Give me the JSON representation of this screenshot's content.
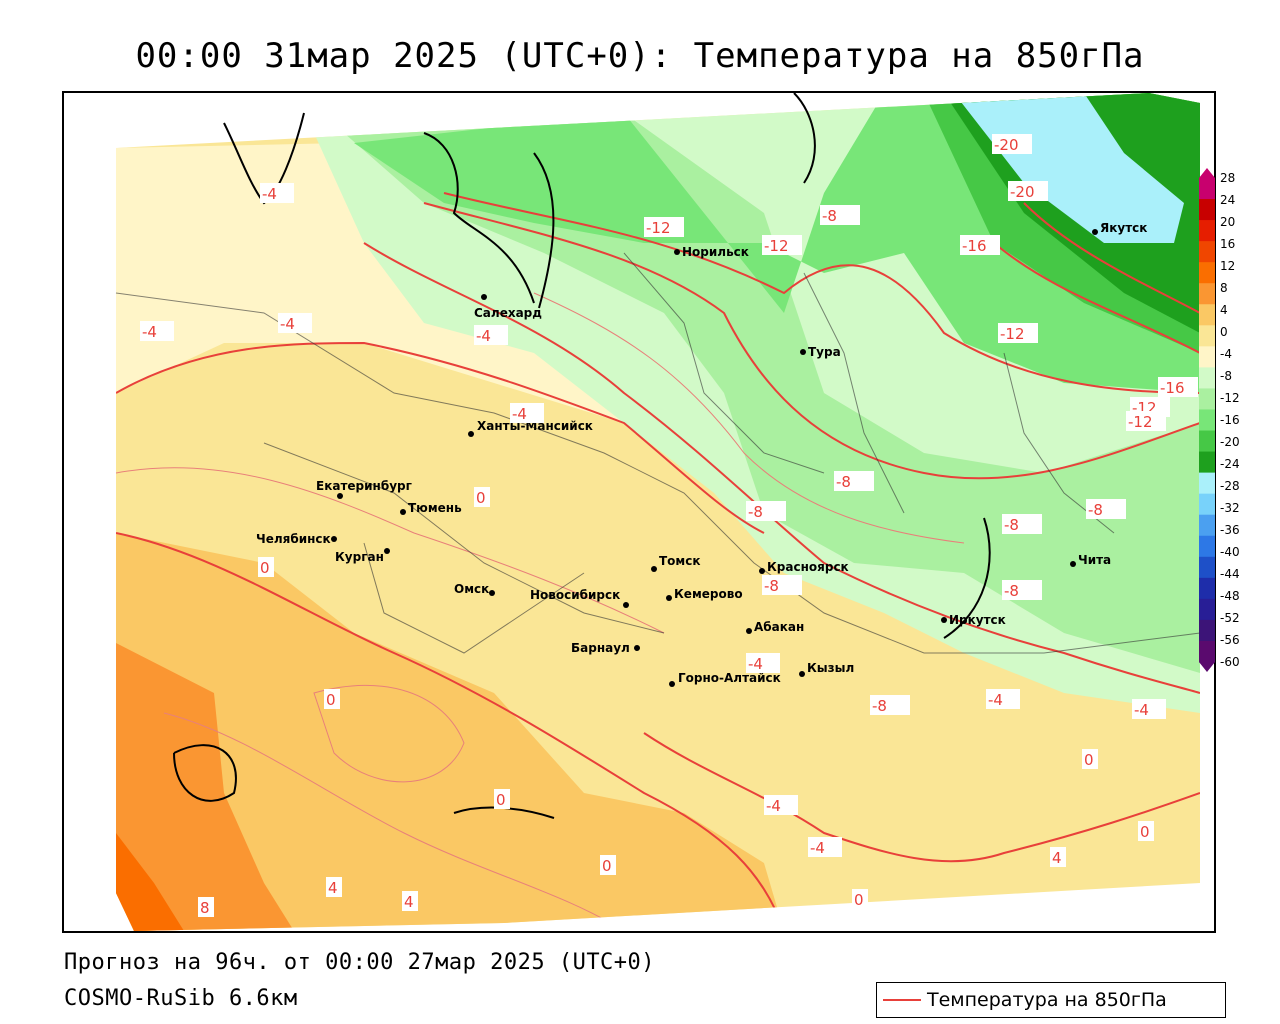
{
  "title": "00:00 31мар 2025 (UTC+0): Температура на 850гПа",
  "footer": {
    "forecast": "Прогноз на 96ч. от 00:00 27мар 2025 (UTC+0)",
    "model": "COSMO-RuSib 6.6км"
  },
  "legend": {
    "label": "Температура на 850гПа",
    "line_color": "#e8403a"
  },
  "colorbar": {
    "labels": [
      "28",
      "24",
      "20",
      "16",
      "12",
      "8",
      "4",
      "0",
      "-4",
      "-8",
      "-12",
      "-16",
      "-20",
      "-24",
      "-28",
      "-32",
      "-36",
      "-40",
      "-44",
      "-48",
      "-52",
      "-56",
      "-60"
    ],
    "colors": [
      "#c8006e",
      "#c80000",
      "#e61e00",
      "#f04600",
      "#fa6e00",
      "#fa9632",
      "#fac864",
      "#fae696",
      "#fff5c8",
      "#d2fac8",
      "#aaf0a0",
      "#78e678",
      "#46c846",
      "#1ea01e",
      "#aaf0fa",
      "#78d2fa",
      "#4ba0f0",
      "#2d78e6",
      "#1e50c8",
      "#1e2daa",
      "#281e96",
      "#3c1478",
      "#5a0a6e"
    ]
  },
  "cities": [
    {
      "name": "Норильск"
    },
    {
      "name": "Салехард"
    },
    {
      "name": "Тура"
    },
    {
      "name": "Якутск"
    },
    {
      "name": "Ханты-Мансийск"
    },
    {
      "name": "Екатеринбург"
    },
    {
      "name": "Тюмень"
    },
    {
      "name": "Челябинск"
    },
    {
      "name": "Курган"
    },
    {
      "name": "Омск"
    },
    {
      "name": "Новосибирск"
    },
    {
      "name": "Томск"
    },
    {
      "name": "Кемерово"
    },
    {
      "name": "Красноярск"
    },
    {
      "name": "Барнаул"
    },
    {
      "name": "Абакан"
    },
    {
      "name": "Горно-Алтайск"
    },
    {
      "name": "Кызыл"
    },
    {
      "name": "Иркутск"
    },
    {
      "name": "Чита"
    }
  ],
  "isotherm_labels": [
    "-20",
    "-20",
    "-16",
    "-12",
    "-12",
    "-12",
    "-12",
    "-8",
    "-8",
    "-8",
    "-8",
    "-8",
    "-8",
    "-8",
    "-8",
    "-16",
    "-12",
    "-4",
    "-4",
    "-4",
    "-4",
    "-4",
    "-4",
    "-4",
    "-4",
    "-4",
    "-4",
    "0",
    "0",
    "0",
    "0",
    "0",
    "0",
    "0",
    "0",
    "4",
    "4",
    "4",
    "8"
  ]
}
